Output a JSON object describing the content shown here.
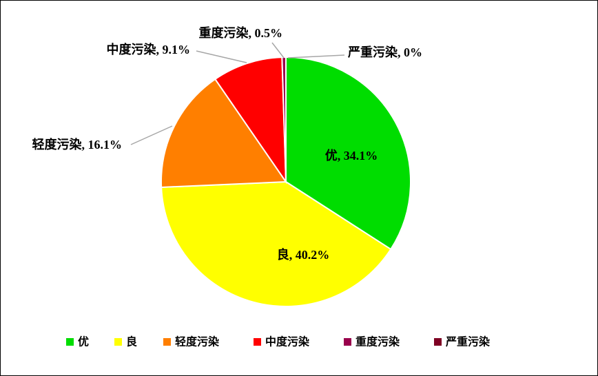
{
  "chart_data": {
    "type": "pie",
    "categories": [
      "优",
      "良",
      "轻度污染",
      "中度污染",
      "重度污染",
      "严重污染"
    ],
    "values": [
      34.1,
      40.2,
      16.1,
      9.1,
      0.5,
      0
    ],
    "value_labels": [
      "优, 34.1%",
      "良, 40.2%",
      "轻度污染, 16.1%",
      "中度污染, 9.1%",
      "重度污染, 0.5%",
      "严重污染, 0%"
    ],
    "colors": [
      "#00dd00",
      "#ffff00",
      "#ff7f00",
      "#ff0000",
      "#99004c",
      "#7e0023"
    ],
    "legend": "bottom"
  }
}
